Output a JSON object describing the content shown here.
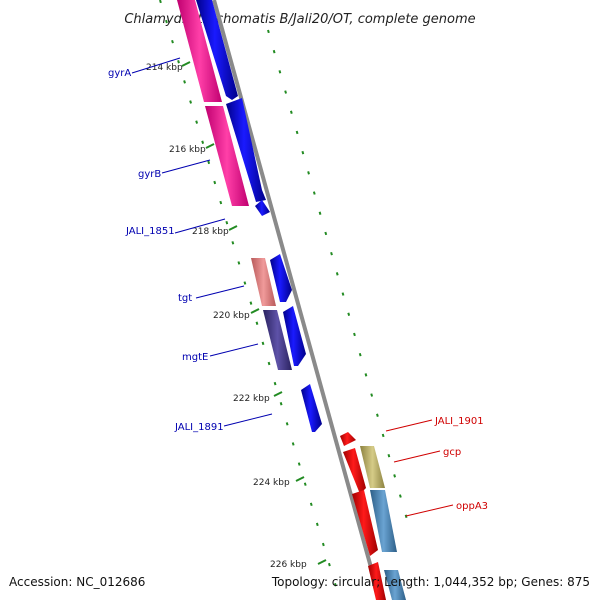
{
  "title": "Chlamydia trachomatis B/Jali20/OT, complete genome",
  "footer": {
    "accession": "Accession: NC_012686",
    "topology": "Topology: circular; Length: 1,044,352 bp; Genes: 875"
  },
  "ticks": [
    "214 kbp",
    "216 kbp",
    "218 kbp",
    "220 kbp",
    "222 kbp",
    "224 kbp",
    "226 kbp"
  ],
  "genes_blue": [
    "gyrA",
    "gyrB",
    "JALI_1851",
    "tgt",
    "mgtE",
    "JALI_1891"
  ],
  "genes_red": [
    "JALI_1901",
    "gcp",
    "oppA3"
  ],
  "colors": {
    "forward_cds": "#0000ff",
    "reverse_cds": "#ff0000",
    "cog_pink": "#ff1493",
    "cog_salmon": "#e98080",
    "cog_purple": "#4b3f8a",
    "cog_olive": "#bfb36a",
    "cog_steelblue": "#4682b4",
    "backbone": "#8a8a8a",
    "gc_dash": "#228b22"
  }
}
